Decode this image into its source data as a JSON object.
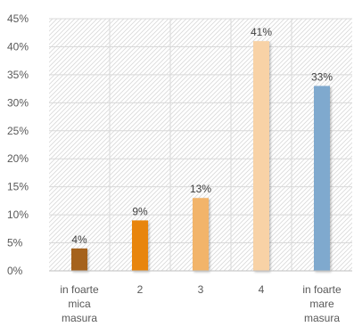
{
  "chart_data": {
    "type": "bar",
    "title": "",
    "xlabel": "",
    "ylabel": "",
    "categories": [
      [
        "in foarte",
        "mica",
        "masura"
      ],
      [
        "2"
      ],
      [
        "3"
      ],
      [
        "4"
      ],
      [
        "in foarte",
        "mare",
        "masura"
      ]
    ],
    "values": [
      4,
      9,
      13,
      41,
      33
    ],
    "data_labels": [
      "4%",
      "9%",
      "13%",
      "41%",
      "33%"
    ],
    "ylim": [
      0,
      45
    ],
    "yticks": [
      0,
      5,
      10,
      15,
      20,
      25,
      30,
      35,
      40,
      45
    ],
    "ytick_labels": [
      "0%",
      "5%",
      "10%",
      "15%",
      "20%",
      "25%",
      "30%",
      "35%",
      "40%",
      "45%"
    ],
    "grid": true,
    "legend": "none",
    "bar_colors": [
      "#A5621B",
      "#E8850F",
      "#F2B46A",
      "#F8D2A6",
      "#7FA9CE"
    ]
  }
}
